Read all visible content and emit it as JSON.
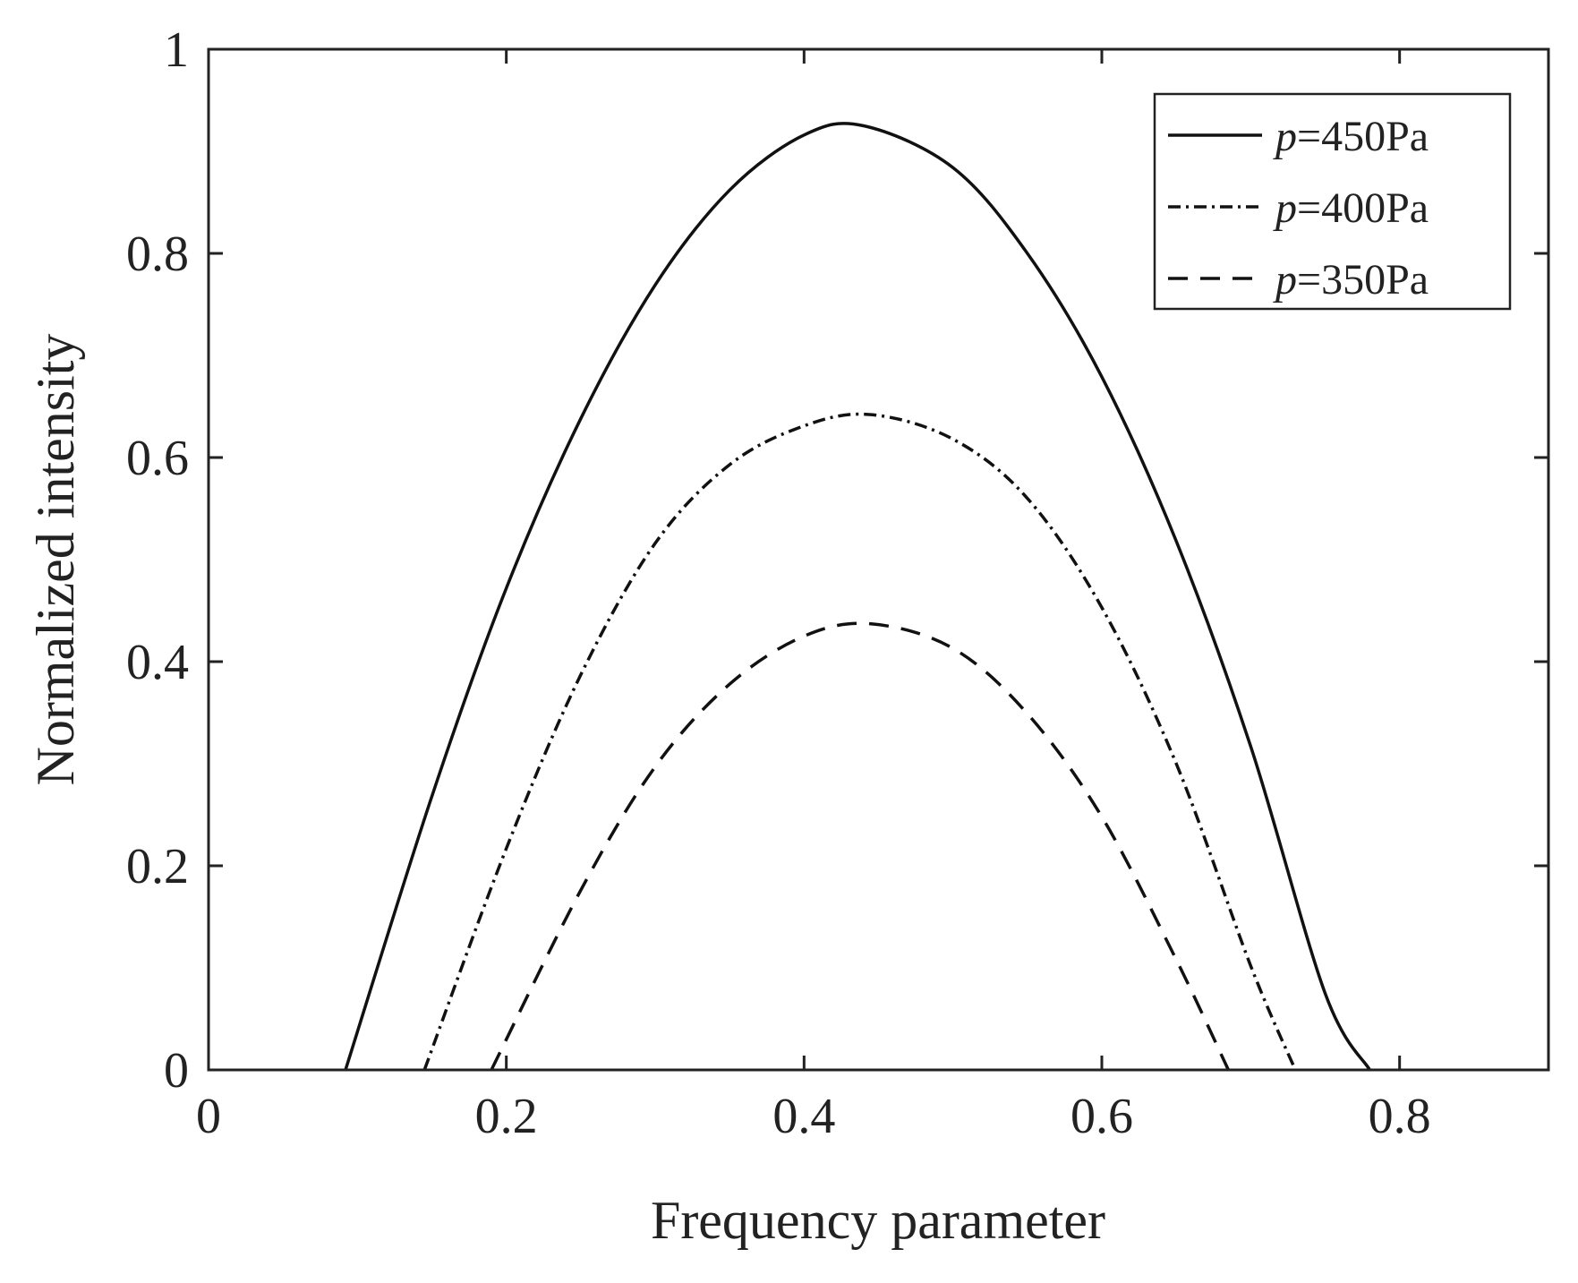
{
  "chart_data": {
    "type": "line",
    "title": "",
    "xlabel": "Frequency parameter",
    "ylabel": "Normalized intensity",
    "xlim": [
      0,
      0.9
    ],
    "ylim": [
      0,
      1
    ],
    "xticks": [
      0,
      0.2,
      0.4,
      0.6,
      0.8
    ],
    "xtick_labels": [
      "0",
      "0.2",
      "0.4",
      "0.6",
      "0.8"
    ],
    "yticks": [
      0,
      0.2,
      0.4,
      0.6,
      0.8,
      1
    ],
    "ytick_labels": [
      "0",
      "0.2",
      "0.4",
      "0.6",
      "0.8",
      "1"
    ],
    "grid": false,
    "legend_position": "top-right",
    "series": [
      {
        "name": "p=450Pa",
        "name_parts": {
          "symbol": "p",
          "rest": "=450Pa"
        },
        "line_style": "solid",
        "x": [
          0.092,
          0.15,
          0.2,
          0.25,
          0.3,
          0.35,
          0.4,
          0.44,
          0.5,
          0.55,
          0.6,
          0.65,
          0.7,
          0.75,
          0.78
        ],
        "y": [
          0,
          0.268,
          0.472,
          0.638,
          0.769,
          0.862,
          0.916,
          0.925,
          0.884,
          0.8,
          0.679,
          0.518,
          0.317,
          0.075,
          0
        ]
      },
      {
        "name": "p=400Pa",
        "name_parts": {
          "symbol": "p",
          "rest": "=400Pa"
        },
        "line_style": "dashdot",
        "x": [
          0.145,
          0.2,
          0.25,
          0.3,
          0.35,
          0.4,
          0.445,
          0.5,
          0.55,
          0.6,
          0.65,
          0.7,
          0.73
        ],
        "y": [
          0,
          0.217,
          0.387,
          0.516,
          0.593,
          0.631,
          0.642,
          0.618,
          0.56,
          0.453,
          0.3,
          0.102,
          0
        ],
        "data_note_removed": true
      },
      {
        "name": "p=350Pa",
        "name_parts": {
          "symbol": "p",
          "rest": "=350Pa"
        },
        "line_style": "dashed",
        "x": [
          0.19,
          0.25,
          0.3,
          0.35,
          0.4,
          0.445,
          0.5,
          0.55,
          0.6,
          0.65,
          0.685
        ],
        "y": [
          0,
          0.176,
          0.297,
          0.378,
          0.425,
          0.437,
          0.413,
          0.349,
          0.248,
          0.108,
          0
        ]
      }
    ]
  }
}
